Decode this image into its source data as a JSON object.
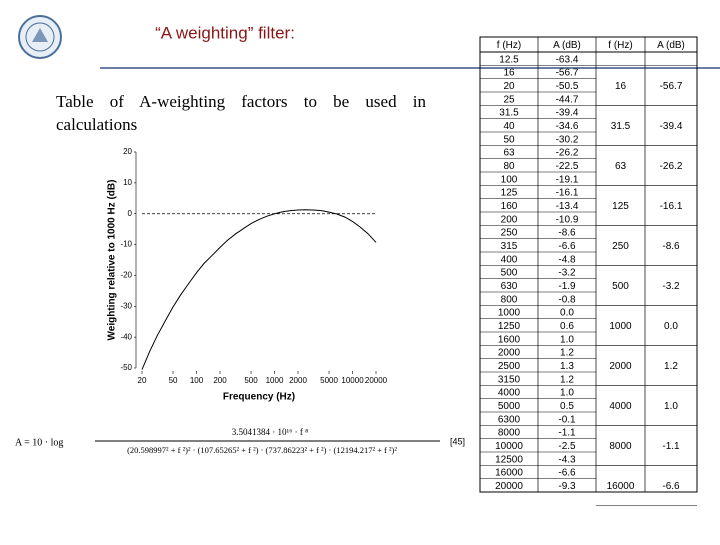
{
  "header": {
    "title": "“A weighting” filter:"
  },
  "body": {
    "text": "Table of A-weighting factors to be used in calculations"
  },
  "chart_data": {
    "type": "line",
    "y_label": "Weighting relative to 1000 Hz (dB)",
    "x_label": "Frequency (Hz)",
    "x": [
      20,
      25,
      31.5,
      40,
      50,
      63,
      80,
      100,
      125,
      160,
      200,
      250,
      315,
      400,
      500,
      630,
      800,
      1000,
      1250,
      1600,
      2000,
      2500,
      3150,
      4000,
      5000,
      6300,
      8000,
      10000,
      12500,
      16000,
      20000
    ],
    "series": [
      {
        "color": "#000000",
        "values": [
          -50.5,
          -44.7,
          -39.4,
          -34.6,
          -30.2,
          -26.2,
          -22.5,
          -19.1,
          -16.1,
          -13.4,
          -10.9,
          -8.6,
          -6.6,
          -4.8,
          -3.2,
          -1.9,
          -0.8,
          0.0,
          0.6,
          1.0,
          1.2,
          1.3,
          1.2,
          1.0,
          0.5,
          -0.1,
          -1.1,
          -2.5,
          -4.3,
          -6.6,
          -9.3
        ]
      }
    ],
    "x_scale": "log",
    "xlim": [
      20,
      20000
    ],
    "xticks": [
      20,
      50,
      100,
      200,
      500,
      1000,
      2000,
      5000,
      10000,
      20000
    ],
    "ylim": [
      -50,
      20
    ],
    "yticks": [
      -50,
      -40,
      -30,
      -20,
      -10,
      0,
      10,
      20
    ],
    "reference_line": 0
  },
  "formula": {
    "lhs": "A = 10 · log",
    "numerator": "3.5041384 · 10¹⁶ · f ⁸",
    "denominator": "(20.598997² + f ²)² · (107.65265² + f ²) · (737.86223² + f ²) · (12194.217² + f ²)²",
    "ref": "[45]"
  },
  "table": {
    "headers": [
      "f (Hz)",
      "A (dB)",
      "f (Hz)",
      "A (dB)"
    ],
    "rows": [
      [
        "12.5",
        "-63.4"
      ],
      [
        "16",
        "-56.7"
      ],
      [
        "20",
        "-50.5"
      ],
      [
        "25",
        "-44.7"
      ],
      [
        "31.5",
        "-39.4"
      ],
      [
        "40",
        "-34.6"
      ],
      [
        "50",
        "-30.2"
      ],
      [
        "63",
        "-26.2"
      ],
      [
        "80",
        "-22.5"
      ],
      [
        "100",
        "-19.1"
      ],
      [
        "125",
        "-16.1"
      ],
      [
        "160",
        "-13.4"
      ],
      [
        "200",
        "-10.9"
      ],
      [
        "250",
        "-8.6"
      ],
      [
        "315",
        "-6.6"
      ],
      [
        "400",
        "-4.8"
      ],
      [
        "500",
        "-3.2"
      ],
      [
        "630",
        "-1.9"
      ],
      [
        "800",
        "-0.8"
      ],
      [
        "1000",
        "0.0"
      ],
      [
        "1250",
        "0.6"
      ],
      [
        "1600",
        "1.0"
      ],
      [
        "2000",
        "1.2"
      ],
      [
        "2500",
        "1.3"
      ],
      [
        "3150",
        "1.2"
      ],
      [
        "4000",
        "1.0"
      ],
      [
        "5000",
        "0.5"
      ],
      [
        "6300",
        "-0.1"
      ],
      [
        "8000",
        "-1.1"
      ],
      [
        "10000",
        "-2.5"
      ],
      [
        "12500",
        "-4.3"
      ],
      [
        "16000",
        "-6.6"
      ],
      [
        "20000",
        "-9.3"
      ]
    ],
    "octave": [
      [
        "16",
        "-56.7"
      ],
      [
        "31.5",
        "-39.4"
      ],
      [
        "63",
        "-26.2"
      ],
      [
        "125",
        "-16.1"
      ],
      [
        "250",
        "-8.6"
      ],
      [
        "500",
        "-3.2"
      ],
      [
        "1000",
        "0.0"
      ],
      [
        "2000",
        "1.2"
      ],
      [
        "4000",
        "1.0"
      ],
      [
        "8000",
        "-1.1"
      ],
      [
        "16000",
        "-6.6"
      ]
    ]
  }
}
